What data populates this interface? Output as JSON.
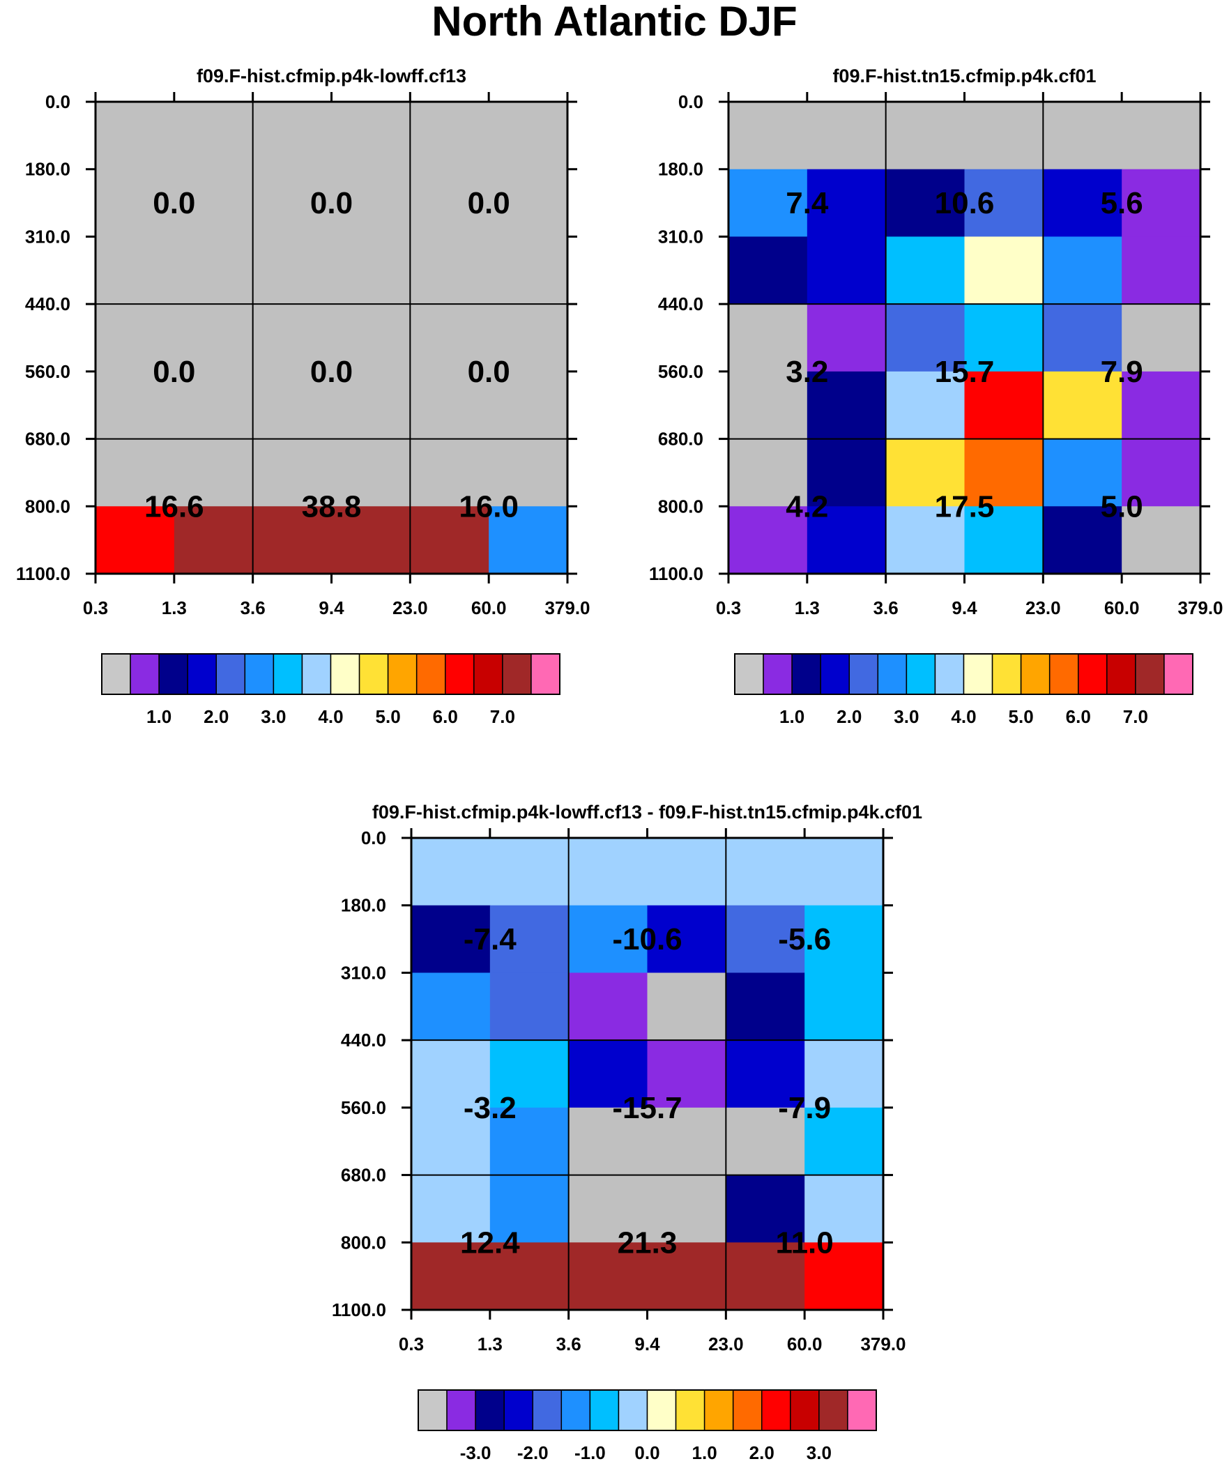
{
  "title": "North Atlantic DJF",
  "chart_data": [
    {
      "type": "heatmap",
      "title": "f09.F-hist.cfmip.p4k-lowff.cf13",
      "x_ticks": [
        "0.3",
        "1.3",
        "3.6",
        "9.4",
        "23.0",
        "60.0",
        "379.0"
      ],
      "y_ticks": [
        "0.0",
        "180.0",
        "310.0",
        "440.0",
        "560.0",
        "680.0",
        "800.0",
        "1100.0"
      ],
      "cells": [
        [
          "c0",
          "c0",
          "c0",
          "c0",
          "c0",
          "c0"
        ],
        [
          "c0",
          "c0",
          "c0",
          "c0",
          "c0",
          "c0"
        ],
        [
          "c0",
          "c0",
          "c0",
          "c0",
          "c0",
          "c0"
        ],
        [
          "c0",
          "c0",
          "c0",
          "c0",
          "c0",
          "c0"
        ],
        [
          "c0",
          "c0",
          "c0",
          "c0",
          "c0",
          "c0"
        ],
        [
          "c0",
          "c0",
          "c0",
          "c0",
          "c0",
          "c0"
        ],
        [
          "c12",
          "c14",
          "c14",
          "c14",
          "c14",
          "c5"
        ]
      ],
      "labels": [
        {
          "text": "0.0",
          "col": 0,
          "row": 0
        },
        {
          "text": "0.0",
          "col": 1,
          "row": 0
        },
        {
          "text": "0.0",
          "col": 2,
          "row": 0
        },
        {
          "text": "0.0",
          "col": 0,
          "row": 1
        },
        {
          "text": "0.0",
          "col": 1,
          "row": 1
        },
        {
          "text": "0.0",
          "col": 2,
          "row": 1
        },
        {
          "text": "16.6",
          "col": 0,
          "row": 2
        },
        {
          "text": "38.8",
          "col": 1,
          "row": 2
        },
        {
          "text": "16.0",
          "col": 2,
          "row": 2
        }
      ],
      "colorbar_labels": [
        "1.0",
        "2.0",
        "3.0",
        "4.0",
        "5.0",
        "6.0",
        "7.0"
      ],
      "colorbar_scale": "positive"
    },
    {
      "type": "heatmap",
      "title": "f09.F-hist.tn15.cfmip.p4k.cf01",
      "x_ticks": [
        "0.3",
        "1.3",
        "3.6",
        "9.4",
        "23.0",
        "60.0",
        "379.0"
      ],
      "y_ticks": [
        "0.0",
        "180.0",
        "310.0",
        "440.0",
        "560.0",
        "680.0",
        "800.0",
        "1100.0"
      ],
      "cells": [
        [
          "c0",
          "c0",
          "c0",
          "c0",
          "c0",
          "c0"
        ],
        [
          "c5",
          "c3",
          "c2",
          "c4",
          "c3",
          "c1"
        ],
        [
          "c2",
          "c3",
          "c6",
          "c8",
          "c5",
          "c1"
        ],
        [
          "c0",
          "c1",
          "c4",
          "c6",
          "c4",
          "c0"
        ],
        [
          "c0",
          "c2",
          "c7",
          "c12",
          "c9",
          "c1"
        ],
        [
          "c0",
          "c2",
          "c9",
          "c11",
          "c5",
          "c1"
        ],
        [
          "c1",
          "c3",
          "c7",
          "c6",
          "c2",
          "c0"
        ]
      ],
      "labels": [
        {
          "text": "7.4",
          "col": 0,
          "row": 0
        },
        {
          "text": "10.6",
          "col": 1,
          "row": 0
        },
        {
          "text": "5.6",
          "col": 2,
          "row": 0
        },
        {
          "text": "3.2",
          "col": 0,
          "row": 1
        },
        {
          "text": "15.7",
          "col": 1,
          "row": 1
        },
        {
          "text": "7.9",
          "col": 2,
          "row": 1
        },
        {
          "text": "4.2",
          "col": 0,
          "row": 2
        },
        {
          "text": "17.5",
          "col": 1,
          "row": 2
        },
        {
          "text": "5.0",
          "col": 2,
          "row": 2
        }
      ],
      "colorbar_labels": [
        "1.0",
        "2.0",
        "3.0",
        "4.0",
        "5.0",
        "6.0",
        "7.0"
      ],
      "colorbar_scale": "positive"
    },
    {
      "type": "heatmap",
      "title": "f09.F-hist.cfmip.p4k-lowff.cf13 - f09.F-hist.tn15.cfmip.p4k.cf01",
      "x_ticks": [
        "0.3",
        "1.3",
        "3.6",
        "9.4",
        "23.0",
        "60.0",
        "379.0"
      ],
      "y_ticks": [
        "0.0",
        "180.0",
        "310.0",
        "440.0",
        "560.0",
        "680.0",
        "800.0",
        "1100.0"
      ],
      "cells": [
        [
          "c7",
          "c7",
          "c7",
          "c7",
          "c7",
          "c7"
        ],
        [
          "c2",
          "c4",
          "c5",
          "c3",
          "c4",
          "c6"
        ],
        [
          "c5",
          "c4",
          "c1",
          "c0",
          "c2",
          "c6"
        ],
        [
          "c7",
          "c6",
          "c3",
          "c1",
          "c3",
          "c7"
        ],
        [
          "c7",
          "c5",
          "c0",
          "c0",
          "c0",
          "c6"
        ],
        [
          "c7",
          "c5",
          "c0",
          "c0",
          "c2",
          "c7"
        ],
        [
          "c14",
          "c14",
          "c14",
          "c14",
          "c14",
          "c12"
        ]
      ],
      "labels": [
        {
          "text": "-7.4",
          "col": 0,
          "row": 0
        },
        {
          "text": "-10.6",
          "col": 1,
          "row": 0
        },
        {
          "text": "-5.6",
          "col": 2,
          "row": 0
        },
        {
          "text": "-3.2",
          "col": 0,
          "row": 1
        },
        {
          "text": "-15.7",
          "col": 1,
          "row": 1
        },
        {
          "text": "-7.9",
          "col": 2,
          "row": 1
        },
        {
          "text": "12.4",
          "col": 0,
          "row": 2
        },
        {
          "text": "21.3",
          "col": 1,
          "row": 2
        },
        {
          "text": "11.0",
          "col": 2,
          "row": 2
        }
      ],
      "colorbar_labels": [
        "-3.0",
        "-2.0",
        "-1.0",
        "0.0",
        "1.0",
        "2.0",
        "3.0"
      ],
      "colorbar_scale": "difference"
    }
  ],
  "palette": {
    "c0": "#c0c0c0",
    "c1": "#8a2be2",
    "c2": "#00008b",
    "c3": "#0000cd",
    "c4": "#4169e1",
    "c5": "#1e90ff",
    "c6": "#00bfff",
    "c7": "#a0d2ff",
    "c8": "#ffffc8",
    "c9": "#ffe135",
    "c10": "#ffa500",
    "c11": "#ff6a00",
    "c12": "#ff0000",
    "c13": "#c80000",
    "c14": "#a02828",
    "c15": "#ff69b4"
  },
  "colorbar_colors": [
    "#c8c8c8",
    "#8a2be2",
    "#00008b",
    "#0000cd",
    "#4169e1",
    "#1e90ff",
    "#00bfff",
    "#a0d2ff",
    "#ffffc8",
    "#ffe135",
    "#ffa500",
    "#ff6a00",
    "#ff0000",
    "#c80000",
    "#a02828",
    "#ff69b4"
  ]
}
